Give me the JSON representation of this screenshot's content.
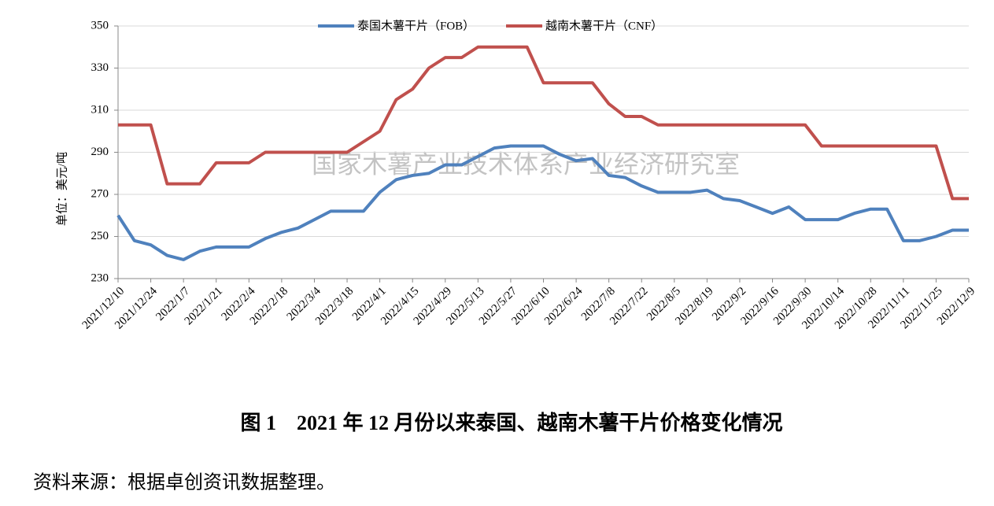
{
  "chart_data": {
    "type": "line",
    "watermark": "国家木薯产业技术体系产业经济研究室",
    "y_label": "单位：美元/吨",
    "caption": "图 1　2021 年 12 月份以来泰国、越南木薯干片价格变化情况",
    "source": "资料来源：根据卓创资讯数据整理。",
    "categories": [
      "2021/12/10",
      null,
      "2021/12/24",
      null,
      "2022/1/7",
      null,
      "2022/1/21",
      null,
      "2022/2/4",
      null,
      "2022/2/18",
      null,
      "2022/3/4",
      null,
      "2022/3/18",
      null,
      "2022/4/1",
      null,
      "2022/4/15",
      null,
      "2022/4/29",
      null,
      "2022/5/13",
      null,
      "2022/5/27",
      null,
      "2022/6/10",
      null,
      "2022/6/24",
      null,
      "2022/7/8",
      null,
      "2022/7/22",
      null,
      "2022/8/5",
      null,
      "2022/8/19",
      null,
      "2022/9/2",
      null,
      "2022/9/16",
      null,
      "2022/9/30",
      null,
      "2022/10/14",
      null,
      "2022/10/28",
      null,
      "2022/11/11",
      null,
      "2022/11/25",
      null,
      "2022/12/9"
    ],
    "series": [
      {
        "name": "泰国木薯干片（FOB）",
        "color": "#4f81bd",
        "values": [
          260,
          248,
          246,
          241,
          239,
          243,
          245,
          245,
          245,
          249,
          252,
          254,
          258,
          262,
          262,
          262,
          271,
          277,
          279,
          280,
          284,
          284,
          288,
          292,
          293,
          293,
          293,
          289,
          286,
          287,
          279,
          278,
          274,
          271,
          271,
          271,
          272,
          268,
          267,
          264,
          261,
          264,
          258,
          258,
          258,
          261,
          263,
          263,
          248,
          248,
          250,
          253,
          253
        ]
      },
      {
        "name": "越南木薯干片（CNF）",
        "color": "#c0504d",
        "values": [
          303,
          303,
          303,
          275,
          275,
          275,
          285,
          285,
          285,
          290,
          290,
          290,
          290,
          290,
          290,
          295,
          300,
          315,
          320,
          330,
          335,
          335,
          340,
          340,
          340,
          340,
          323,
          323,
          323,
          323,
          313,
          307,
          307,
          303,
          303,
          303,
          303,
          303,
          303,
          303,
          303,
          303,
          303,
          293,
          293,
          293,
          293,
          293,
          293,
          293,
          293,
          268,
          268
        ]
      }
    ],
    "ylim": [
      230,
      350
    ],
    "yticks": [
      230,
      250,
      270,
      290,
      310,
      330,
      350
    ],
    "grid": true
  }
}
